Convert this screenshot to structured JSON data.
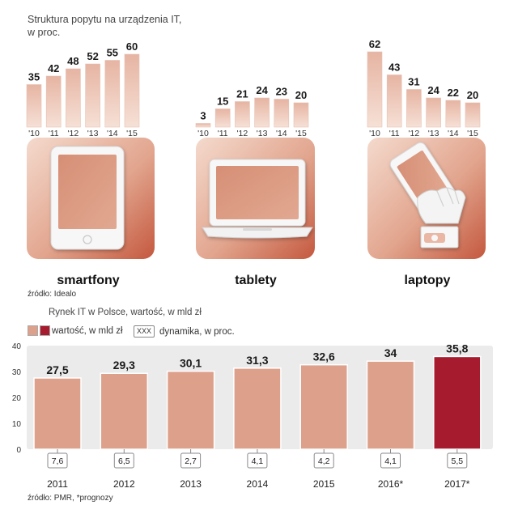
{
  "header": {
    "title": "Struktura popytu na urządzenia IT, w proc."
  },
  "colors": {
    "bar_light": "#dca08b",
    "bar_dark": "#a61b2e",
    "tile_light": "#f3d6c7",
    "tile_dark": "#c5583d",
    "plot_bg": "#ebebeb"
  },
  "chart_data": [
    {
      "type": "bar",
      "title": "smartfony",
      "icon": "tablet-device-icon",
      "categories": [
        "'10",
        "'11",
        "'12",
        "'13",
        "'14",
        "'15"
      ],
      "values": [
        35,
        42,
        48,
        52,
        55,
        60
      ]
    },
    {
      "type": "bar",
      "title": "tablety",
      "icon": "laptop-icon",
      "categories": [
        "'10",
        "'11",
        "'12",
        "'13",
        "'14",
        "'15"
      ],
      "values": [
        3,
        15,
        21,
        24,
        23,
        20
      ]
    },
    {
      "type": "bar",
      "title": "laptopy",
      "icon": "hand-smartphone-icon",
      "categories": [
        "'10",
        "'11",
        "'12",
        "'13",
        "'14",
        "'15"
      ],
      "values": [
        62,
        43,
        31,
        24,
        22,
        20
      ]
    },
    {
      "type": "bar",
      "title": "Rynek IT w Polsce, wartość, w mld zł",
      "categories": [
        "2011",
        "2012",
        "2013",
        "2014",
        "2015",
        "2016*",
        "2017*"
      ],
      "values": [
        27.5,
        29.3,
        30.1,
        31.3,
        32.6,
        34,
        35.8
      ],
      "value_labels": [
        "27,5",
        "29,3",
        "30,1",
        "31,3",
        "32,6",
        "34",
        "35,8"
      ],
      "dynamics": [
        "7,6",
        "6,5",
        "2,7",
        "4,1",
        "4,2",
        "4,1",
        "5,5"
      ],
      "highlight_index": 6,
      "ylim": [
        0,
        40
      ],
      "yticks": [
        0,
        10,
        20,
        30,
        40
      ],
      "grid": false
    }
  ],
  "sources": {
    "top": "źródło: Idealo",
    "bottom": "źródło: PMR, *prognozy"
  },
  "bottom": {
    "title": "Rynek IT w Polsce, wartość, w mld zł",
    "legend_value": "wartość, w mld zł",
    "legend_box": "XXX",
    "legend_dynamics": "dynamika, w proc."
  }
}
